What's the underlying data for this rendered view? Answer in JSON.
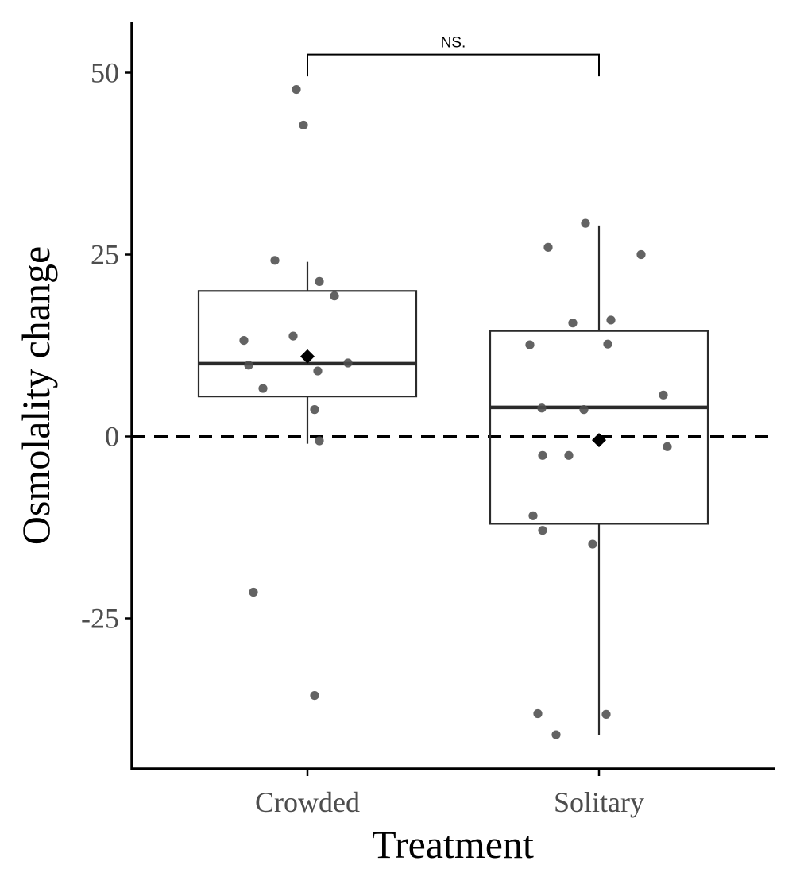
{
  "chart_data": {
    "type": "box",
    "title": "",
    "xlabel": "Treatment",
    "ylabel": "Osmolality change",
    "categories": [
      "Crowded",
      "Solitary"
    ],
    "ylim": [
      -46,
      57
    ],
    "yticks": [
      -25,
      0,
      25,
      50
    ],
    "ytick_labels": [
      "-25",
      "0",
      "25",
      "50"
    ],
    "reference_line": {
      "y": 0,
      "style": "dashed"
    },
    "grid": false,
    "legend": "none",
    "boxes": [
      {
        "category": "Crowded",
        "whisker_low": -1,
        "q1": 5.5,
        "median": 10,
        "q3": 20,
        "whisker_high": 24,
        "mean": 11
      },
      {
        "category": "Solitary",
        "whisker_low": -41,
        "q1": -12,
        "median": 4,
        "q3": 14.5,
        "whisker_high": 29,
        "mean": -0.5
      }
    ],
    "points": [
      {
        "category": "Crowded",
        "values": [
          47.7,
          42.8,
          24.2,
          21.3,
          19.3,
          13.8,
          13.2,
          10.1,
          9.8,
          9.0,
          6.6,
          3.7,
          -0.6,
          -21.4,
          -35.6
        ]
      },
      {
        "category": "Solitary",
        "values": [
          29.3,
          26.0,
          25.0,
          16.0,
          15.6,
          12.7,
          12.6,
          5.7,
          3.9,
          3.7,
          -1.4,
          -2.6,
          -2.6,
          -10.9,
          -12.9,
          -14.8,
          -38.1,
          -38.2,
          -41.0
        ]
      }
    ],
    "significance": {
      "label": "NS.",
      "from": "Crowded",
      "to": "Solitary",
      "y": 52.5,
      "tip_y": 49.5
    },
    "colors": {
      "points": "#4d4d4d",
      "box": "#2b2b2b",
      "mean_marker": "#000000",
      "axis": "#000000"
    }
  }
}
